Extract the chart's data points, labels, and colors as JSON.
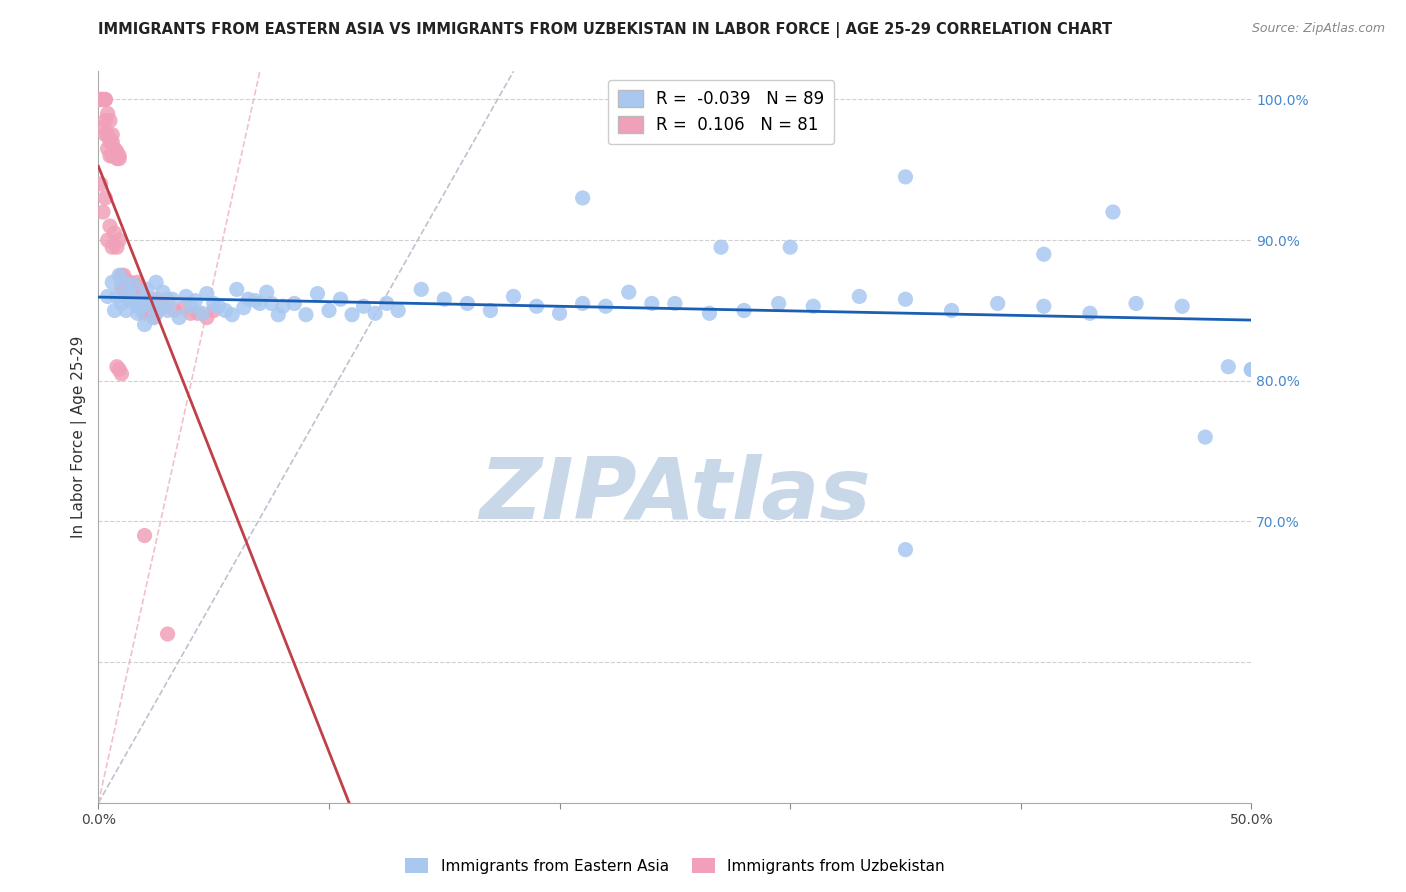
{
  "title": "IMMIGRANTS FROM EASTERN ASIA VS IMMIGRANTS FROM UZBEKISTAN IN LABOR FORCE | AGE 25-29 CORRELATION CHART",
  "source": "Source: ZipAtlas.com",
  "ylabel": "In Labor Force | Age 25-29",
  "xlim": [
    0.0,
    0.5
  ],
  "ylim": [
    0.5,
    1.02
  ],
  "xticks": [
    0.0,
    0.1,
    0.2,
    0.3,
    0.4,
    0.5
  ],
  "yticks": [
    0.5,
    0.6,
    0.7,
    0.8,
    0.9,
    1.0
  ],
  "ytick_labels_right": [
    "",
    "",
    "70.0%",
    "80.0%",
    "90.0%",
    "100.0%"
  ],
  "R_blue": -0.039,
  "N_blue": 89,
  "R_pink": 0.106,
  "N_pink": 81,
  "blue_color": "#a8c8f0",
  "pink_color": "#f0a0b8",
  "blue_line_color": "#1a5fb4",
  "pink_line_color": "#c0404a",
  "blue_dashed_color": "#c0c0d0",
  "pink_dashed_color": "#f0c0cc",
  "background_color": "#ffffff",
  "grid_color": "#d0d0d0",
  "watermark_color": "#c8d8e8",
  "blue_scatter_x": [
    0.004,
    0.006,
    0.007,
    0.008,
    0.009,
    0.01,
    0.011,
    0.012,
    0.013,
    0.014,
    0.015,
    0.016,
    0.017,
    0.018,
    0.019,
    0.02,
    0.021,
    0.022,
    0.023,
    0.024,
    0.025,
    0.027,
    0.028,
    0.03,
    0.032,
    0.035,
    0.038,
    0.04,
    0.042,
    0.045,
    0.047,
    0.05,
    0.052,
    0.055,
    0.058,
    0.06,
    0.063,
    0.065,
    0.068,
    0.07,
    0.073,
    0.075,
    0.078,
    0.08,
    0.085,
    0.09,
    0.095,
    0.1,
    0.105,
    0.11,
    0.115,
    0.12,
    0.125,
    0.13,
    0.14,
    0.15,
    0.16,
    0.17,
    0.18,
    0.19,
    0.2,
    0.21,
    0.22,
    0.23,
    0.24,
    0.25,
    0.265,
    0.28,
    0.295,
    0.31,
    0.33,
    0.35,
    0.37,
    0.39,
    0.41,
    0.43,
    0.45,
    0.47,
    0.49,
    0.5,
    0.21,
    0.35,
    0.27,
    0.3,
    0.41,
    0.44,
    0.5,
    0.48,
    0.35
  ],
  "blue_scatter_y": [
    0.86,
    0.87,
    0.85,
    0.86,
    0.875,
    0.855,
    0.87,
    0.85,
    0.862,
    0.858,
    0.868,
    0.855,
    0.848,
    0.852,
    0.858,
    0.84,
    0.865,
    0.858,
    0.853,
    0.845,
    0.87,
    0.852,
    0.863,
    0.85,
    0.858,
    0.845,
    0.86,
    0.853,
    0.857,
    0.848,
    0.862,
    0.855,
    0.853,
    0.85,
    0.847,
    0.865,
    0.852,
    0.858,
    0.857,
    0.855,
    0.863,
    0.855,
    0.847,
    0.853,
    0.855,
    0.847,
    0.862,
    0.85,
    0.858,
    0.847,
    0.853,
    0.848,
    0.855,
    0.85,
    0.865,
    0.858,
    0.855,
    0.85,
    0.86,
    0.853,
    0.848,
    0.855,
    0.853,
    0.863,
    0.855,
    0.855,
    0.848,
    0.85,
    0.855,
    0.853,
    0.86,
    0.858,
    0.85,
    0.855,
    0.853,
    0.848,
    0.855,
    0.853,
    0.81,
    0.808,
    0.93,
    0.945,
    0.895,
    0.895,
    0.89,
    0.92,
    0.808,
    0.76,
    0.68
  ],
  "pink_scatter_x": [
    0.001,
    0.001,
    0.001,
    0.001,
    0.002,
    0.002,
    0.002,
    0.002,
    0.003,
    0.003,
    0.003,
    0.003,
    0.004,
    0.004,
    0.004,
    0.005,
    0.005,
    0.005,
    0.006,
    0.006,
    0.006,
    0.007,
    0.007,
    0.008,
    0.008,
    0.009,
    0.009,
    0.01,
    0.01,
    0.011,
    0.011,
    0.012,
    0.012,
    0.013,
    0.013,
    0.014,
    0.015,
    0.016,
    0.017,
    0.018,
    0.02,
    0.022,
    0.025,
    0.028,
    0.03,
    0.033,
    0.037,
    0.04,
    0.043,
    0.047,
    0.05,
    0.001,
    0.002,
    0.003,
    0.004,
    0.005,
    0.006,
    0.007,
    0.008,
    0.009,
    0.01,
    0.011,
    0.012,
    0.013,
    0.014,
    0.015,
    0.016,
    0.017,
    0.018,
    0.019,
    0.02,
    0.021,
    0.022,
    0.023,
    0.024,
    0.025,
    0.008,
    0.009,
    0.01,
    0.02,
    0.03
  ],
  "pink_scatter_y": [
    1.0,
    1.0,
    1.0,
    1.0,
    1.0,
    1.0,
    1.0,
    0.98,
    1.0,
    1.0,
    0.985,
    0.975,
    0.99,
    0.975,
    0.965,
    0.985,
    0.97,
    0.96,
    0.96,
    0.97,
    0.975,
    0.965,
    0.96,
    0.958,
    0.963,
    0.96,
    0.958,
    0.875,
    0.87,
    0.875,
    0.868,
    0.862,
    0.87,
    0.862,
    0.858,
    0.868,
    0.858,
    0.868,
    0.87,
    0.862,
    0.855,
    0.855,
    0.858,
    0.852,
    0.858,
    0.85,
    0.852,
    0.848,
    0.848,
    0.845,
    0.85,
    0.94,
    0.92,
    0.93,
    0.9,
    0.91,
    0.895,
    0.905,
    0.895,
    0.9,
    0.865,
    0.87,
    0.86,
    0.862,
    0.87,
    0.858,
    0.86,
    0.853,
    0.855,
    0.85,
    0.848,
    0.852,
    0.848,
    0.85,
    0.845,
    0.848,
    0.81,
    0.808,
    0.805,
    0.69,
    0.62
  ]
}
